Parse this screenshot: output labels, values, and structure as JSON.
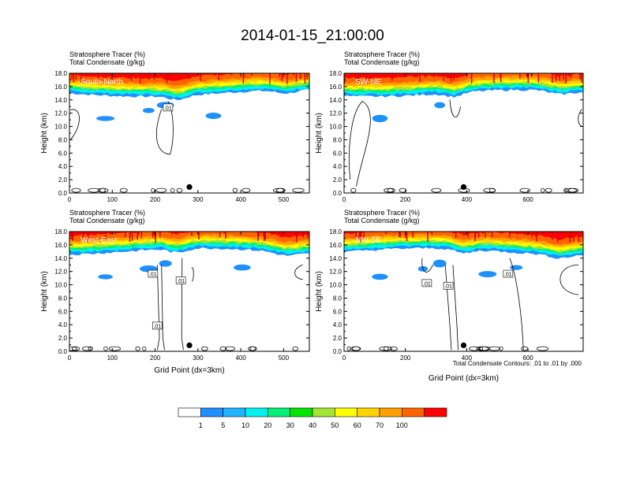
{
  "title": "2014-01-15_21:00:00",
  "panel_header": {
    "line1": "Stratosphere Tracer   (%)",
    "line2": "Total Condensate   (g/kg)"
  },
  "contour_note": "Total Condensate Contours: .01 to .01 by .000",
  "chart_data": [
    {
      "type": "heatmap",
      "label": "South-North",
      "ylabel": "Height (km)",
      "xlabel": "",
      "ylim": [
        0,
        18
      ],
      "yticks": [
        "0.0",
        "2.0",
        "4.0",
        "6.0",
        "8.0",
        "10.0",
        "12.0",
        "14.0",
        "16.0",
        "18.0"
      ],
      "xlim": [
        0,
        560
      ],
      "xticks": [
        "0",
        "100",
        "200",
        "300",
        "400",
        "500"
      ],
      "contour_labels": [
        ".01"
      ],
      "marker_x": 280
    },
    {
      "type": "heatmap",
      "label": "SW-NE",
      "ylabel": "Height (km)",
      "xlabel": "",
      "ylim": [
        0,
        18
      ],
      "yticks": [
        "0.0",
        "2.0",
        "4.0",
        "6.0",
        "8.0",
        "10.0",
        "12.0",
        "14.0",
        "16.0",
        "18.0"
      ],
      "xlim": [
        0,
        780
      ],
      "xticks": [
        "0",
        "200",
        "400",
        "600"
      ],
      "contour_labels": [],
      "marker_x": 390
    },
    {
      "type": "heatmap",
      "label": "West-East",
      "ylabel": "Height (km)",
      "xlabel": "Grid Point (dx=3km)",
      "ylim": [
        0,
        18
      ],
      "yticks": [
        "0.0",
        "2.0",
        "4.0",
        "6.0",
        "8.0",
        "10.0",
        "12.0",
        "14.0",
        "16.0",
        "18.0"
      ],
      "xlim": [
        0,
        560
      ],
      "xticks": [
        "0",
        "100",
        "200",
        "300",
        "400",
        "500"
      ],
      "contour_labels": [
        ".01",
        ".01",
        ".01"
      ],
      "marker_x": 280
    },
    {
      "type": "heatmap",
      "label": "NW-SE",
      "ylabel": "Height (km)",
      "xlabel": "Grid Point (dx=3km)",
      "ylim": [
        0,
        18
      ],
      "yticks": [
        "0.0",
        "2.0",
        "4.0",
        "6.0",
        "8.0",
        "10.0",
        "12.0",
        "14.0",
        "16.0",
        "18.0"
      ],
      "xlim": [
        0,
        780
      ],
      "xticks": [
        "0",
        "200",
        "400",
        "600"
      ],
      "contour_labels": [
        ".01",
        ".01",
        ".01"
      ],
      "marker_x": 390
    }
  ],
  "colorbar": {
    "colors": [
      "#ffffff",
      "#1e90ff",
      "#1eb4ff",
      "#00f0f0",
      "#00f078",
      "#00e600",
      "#a0e632",
      "#ffff00",
      "#ffd200",
      "#ffa000",
      "#ff6400",
      "#ff0000"
    ],
    "labels": [
      "1",
      "5",
      "10",
      "20",
      "30",
      "40",
      "50",
      "60",
      "70",
      "100"
    ]
  }
}
